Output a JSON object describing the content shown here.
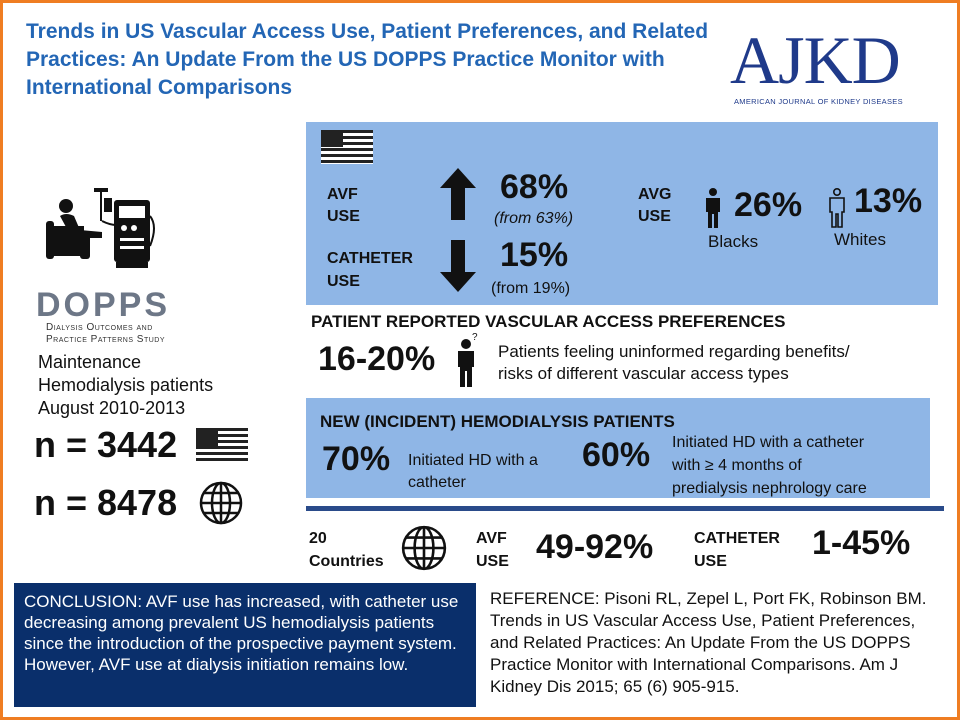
{
  "title": "Trends in US Vascular Access Use, Patient Preferences, and Related Practices: An Update From the US DOPPS Practice Monitor with International Comparisons",
  "logo": {
    "main": "AJKD",
    "sub": "AMERICAN JOURNAL OF KIDNEY DISEASES"
  },
  "left": {
    "dopps": "DOPPS",
    "dopps_sub_1": "Dialysis Outcomes and",
    "dopps_sub_2": "Practice Patterns Study",
    "desc_1": "Maintenance",
    "desc_2": "Hemodialysis patients",
    "desc_3": "August 2010-2013",
    "n_us": "n = 3442",
    "n_intl": "n = 8478"
  },
  "us_panel": {
    "avf_label_1": "AVF",
    "avf_label_2": "USE",
    "avf_value": "68%",
    "avf_from": "(from 63%)",
    "cath_label_1": "CATHETER",
    "cath_label_2": "USE",
    "cath_value": "15%",
    "cath_from": "(from 19%)",
    "avg_label_1": "AVG",
    "avg_label_2": "USE",
    "blacks_value": "26%",
    "blacks_label": "Blacks",
    "whites_value": "13%",
    "whites_label": "Whites"
  },
  "preferences": {
    "heading": "PATIENT REPORTED VASCULAR ACCESS PREFERENCES",
    "value": "16-20%",
    "text_1": "Patients feeling uninformed regarding benefits/",
    "text_2": "risks of different vascular access types"
  },
  "incident": {
    "heading": "NEW (INCIDENT) HEMODIALYSIS PATIENTS",
    "v1": "70%",
    "t1_1": "Initiated HD with a",
    "t1_2": "catheter",
    "v2": "60%",
    "t2_1": "Initiated HD with a catheter",
    "t2_2": "with ≥ 4 months of",
    "t2_3": "predialysis nephrology care"
  },
  "intl": {
    "countries_1": "20",
    "countries_2": "Countries",
    "avf_1": "AVF",
    "avf_2": "USE",
    "avf_value": "49-92%",
    "cath_1": "CATHETER",
    "cath_2": "USE",
    "cath_value": "1-45%"
  },
  "conclusion": "CONCLUSION: AVF use has increased, with catheter use decreasing among prevalent US hemodialysis patients since the introduction of the prospective payment system. However, AVF use at dialysis initiation remains low.",
  "reference": "REFERENCE: Pisoni RL, Zepel L, Port FK, Robinson BM. Trends in US Vascular Access Use, Patient Preferences, and Related Practices: An Update From the US DOPPS Practice Monitor with International Comparisons. Am J Kidney Dis 2015; 65 (6) 905-915.",
  "colors": {
    "border": "#ef7d22",
    "title": "#2366b5",
    "panel": "#8fb6e6",
    "conclusion_bg": "#0a2f6b",
    "logo": "#1f3a8a"
  },
  "icons": [
    "us-flag-icon",
    "arrow-up-icon",
    "arrow-down-icon",
    "person-black-icon",
    "person-outline-icon",
    "thinking-person-icon",
    "globe-icon",
    "dialysis-machine-icon"
  ]
}
